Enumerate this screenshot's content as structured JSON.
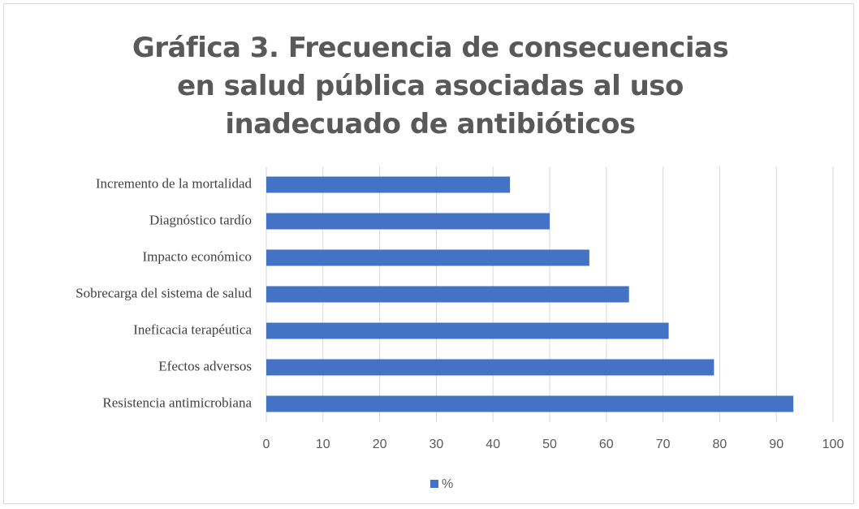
{
  "chart_data": {
    "type": "bar",
    "orientation": "horizontal",
    "title": "Gráfica 3. Frecuencia de consecuencias en salud pública asociadas al uso inadecuado de antibióticos",
    "categories": [
      "Incremento de la mortalidad",
      "Diagnóstico tardío",
      "Impacto económico",
      "Sobrecarga del sistema de salud",
      "Ineficacia terapéutica",
      "Efectos adversos",
      "Resistencia antimicrobiana"
    ],
    "series": [
      {
        "name": "%",
        "color": "#4472c4",
        "values": [
          43,
          50,
          57,
          64,
          71,
          79,
          93
        ]
      }
    ],
    "xlim": [
      0,
      100
    ],
    "xticks": [
      0,
      10,
      20,
      30,
      40,
      50,
      60,
      70,
      80,
      90,
      100
    ],
    "grid": true,
    "legend": "bottom"
  }
}
